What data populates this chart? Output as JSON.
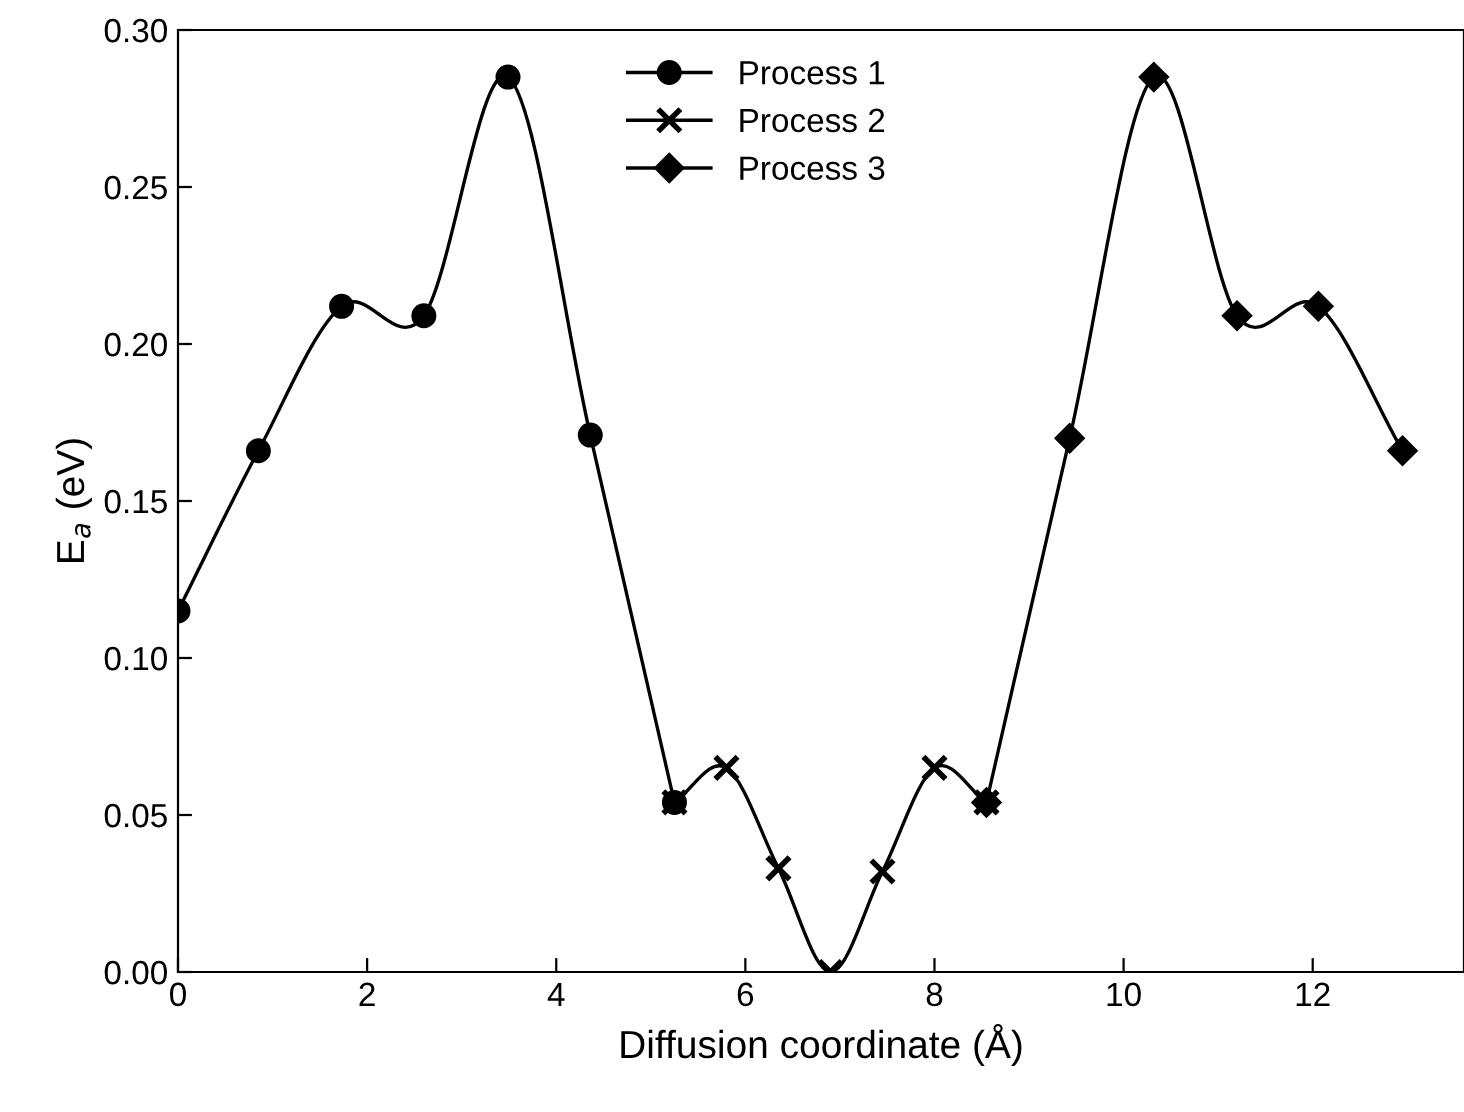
{
  "chart_data": {
    "type": "line",
    "xlabel": "Diffusion coordinate (Å)",
    "ylabel": "E$_{a}$ (eV)",
    "xlim": [
      0,
      13.6
    ],
    "xticks": [
      0,
      2,
      4,
      6,
      8,
      10,
      12
    ],
    "ylim": [
      0,
      0.3
    ],
    "yticks": [
      {
        "value": 0,
        "label": "0.00"
      },
      {
        "value": 0.05,
        "label": "0.05"
      },
      {
        "value": 0.1,
        "label": "0.10"
      },
      {
        "value": 0.15,
        "label": "0.15"
      },
      {
        "value": 0.2,
        "label": "0.20"
      },
      {
        "value": 0.25,
        "label": "0.25"
      },
      {
        "value": 0.3,
        "label": "0.30"
      }
    ],
    "grid": false,
    "legend": "top",
    "line_style": "solid",
    "series": [
      {
        "name": "Process 1",
        "color": "#000000",
        "marker": "circle",
        "x": [
          0,
          0.85,
          1.73,
          2.6,
          3.49,
          4.36,
          5.25
        ],
        "values": [
          0.115,
          0.166,
          0.212,
          0.209,
          0.285,
          0.171,
          0.054
        ]
      },
      {
        "name": "Process 2",
        "color": "#000000",
        "marker": "cross",
        "x": [
          5.25,
          5.8,
          6.35,
          6.9,
          7.45,
          8.0,
          8.55
        ],
        "values": [
          0.054,
          0.065,
          0.033,
          0.0,
          0.032,
          0.065,
          0.054
        ]
      },
      {
        "name": "Process 3",
        "color": "#000000",
        "marker": "diamond",
        "x": [
          8.55,
          9.43,
          10.32,
          11.2,
          12.06,
          12.95
        ],
        "values": [
          0.054,
          0.17,
          0.285,
          0.209,
          0.212,
          0.166
        ]
      }
    ]
  }
}
